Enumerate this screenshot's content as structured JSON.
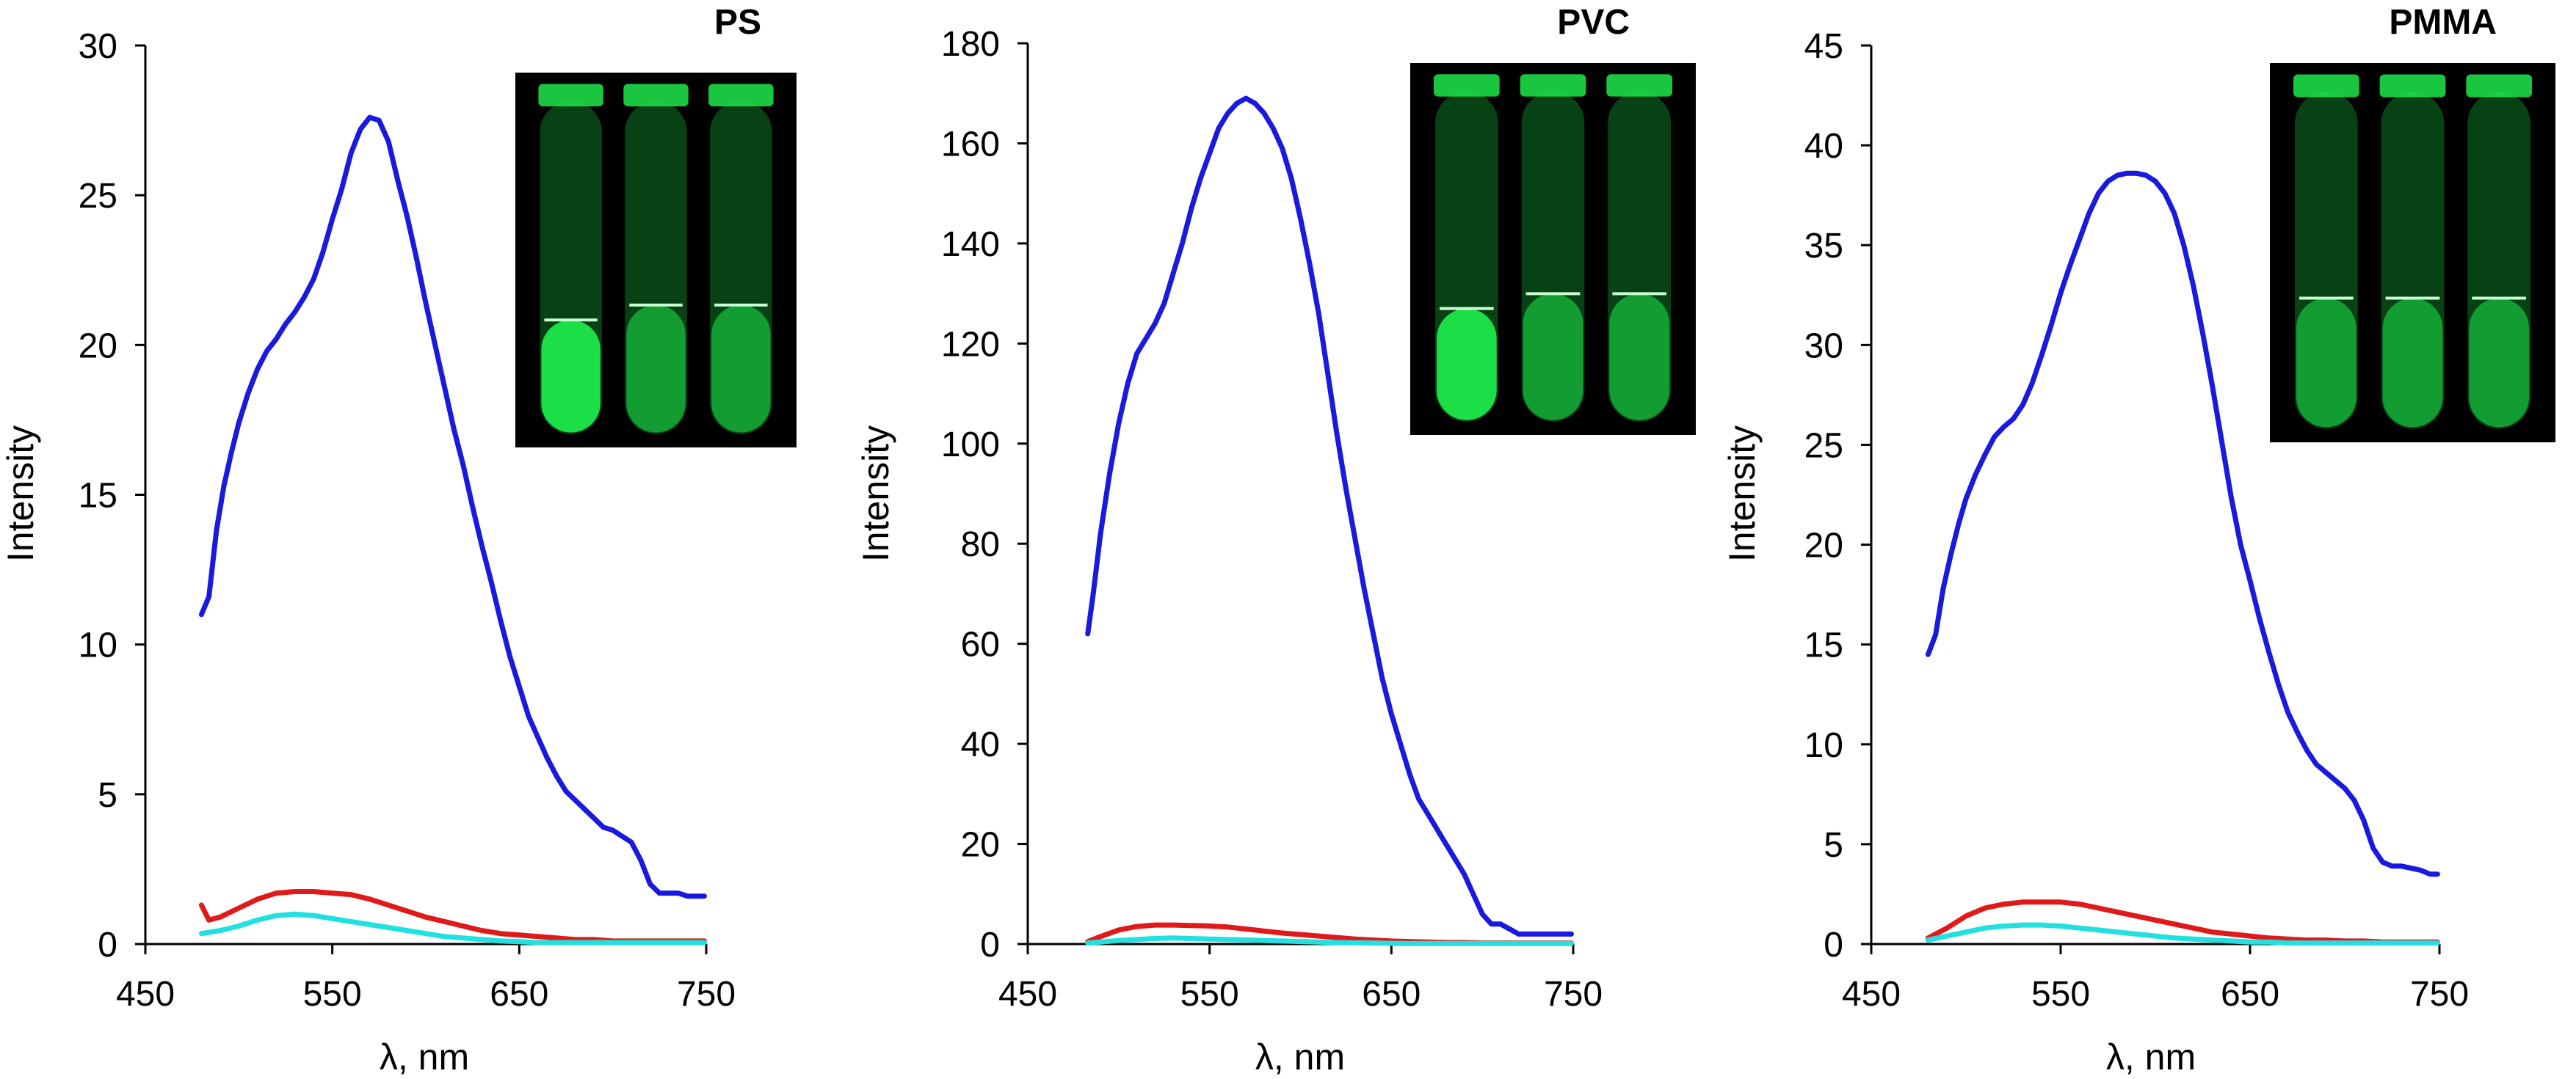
{
  "colors": {
    "series_blue": "#1a1adf",
    "series_red": "#e01a1a",
    "series_cyan": "#22e0e0",
    "axis": "#000000",
    "inset_background": "#000000",
    "inset_fluorescence": "#1ee84a"
  },
  "chart_data": [
    {
      "type": "line",
      "title": "PS",
      "xlabel": "λ, nm",
      "ylabel": "Intensity",
      "xlim": [
        450,
        750
      ],
      "ylim": [
        0,
        30
      ],
      "x_ticks": [
        "450",
        "550",
        "650",
        "750"
      ],
      "y_ticks": [
        "0",
        "5",
        "10",
        "15",
        "20",
        "25",
        "30"
      ],
      "grid": false,
      "legend": "none",
      "inset_image": "photo of three fluorescent vials",
      "series": [
        {
          "color": "#1a1adf",
          "x": [
            480,
            484,
            488,
            492,
            496,
            500,
            505,
            510,
            515,
            520,
            525,
            530,
            535,
            540,
            545,
            550,
            555,
            560,
            565,
            570,
            575,
            580,
            585,
            590,
            595,
            600,
            605,
            610,
            615,
            620,
            625,
            630,
            635,
            640,
            645,
            650,
            655,
            660,
            665,
            670,
            675,
            680,
            685,
            690,
            695,
            700,
            705,
            710,
            715,
            720,
            725,
            730,
            735,
            740,
            745,
            749
          ],
          "y": [
            11.0,
            11.6,
            13.8,
            15.3,
            16.4,
            17.4,
            18.4,
            19.2,
            19.8,
            20.2,
            20.7,
            21.1,
            21.6,
            22.2,
            23.1,
            24.2,
            25.2,
            26.4,
            27.2,
            27.6,
            27.5,
            26.8,
            25.5,
            24.3,
            22.9,
            21.4,
            20.0,
            18.6,
            17.2,
            16.0,
            14.6,
            13.3,
            12.1,
            10.8,
            9.6,
            8.6,
            7.6,
            6.9,
            6.2,
            5.6,
            5.1,
            4.8,
            4.5,
            4.2,
            3.9,
            3.8,
            3.6,
            3.4,
            2.8,
            2.0,
            1.7,
            1.7,
            1.7,
            1.6,
            1.6,
            1.6
          ]
        },
        {
          "color": "#e01a1a",
          "x": [
            480,
            484,
            490,
            500,
            510,
            520,
            530,
            540,
            550,
            560,
            570,
            580,
            590,
            600,
            610,
            620,
            630,
            640,
            650,
            660,
            670,
            680,
            690,
            700,
            710,
            720,
            730,
            740,
            749
          ],
          "y": [
            1.3,
            0.8,
            0.9,
            1.2,
            1.5,
            1.7,
            1.75,
            1.75,
            1.7,
            1.65,
            1.5,
            1.3,
            1.1,
            0.9,
            0.75,
            0.6,
            0.45,
            0.35,
            0.3,
            0.25,
            0.2,
            0.15,
            0.15,
            0.1,
            0.1,
            0.1,
            0.1,
            0.1,
            0.1
          ]
        },
        {
          "color": "#22e0e0",
          "x": [
            480,
            490,
            500,
            510,
            520,
            530,
            540,
            550,
            560,
            570,
            580,
            590,
            600,
            610,
            620,
            630,
            640,
            650,
            660,
            670,
            680,
            690,
            700,
            710,
            720,
            730,
            740,
            749
          ],
          "y": [
            0.35,
            0.45,
            0.6,
            0.8,
            0.95,
            1.0,
            0.95,
            0.85,
            0.75,
            0.65,
            0.55,
            0.45,
            0.35,
            0.25,
            0.2,
            0.15,
            0.1,
            0.08,
            0.05,
            0.05,
            0.05,
            0.05,
            0.05,
            0.05,
            0.05,
            0.05,
            0.05,
            0.05
          ]
        }
      ]
    },
    {
      "type": "line",
      "title": "PVC",
      "xlabel": "λ, nm",
      "ylabel": "Intensity",
      "xlim": [
        450,
        750
      ],
      "ylim": [
        0,
        180
      ],
      "x_ticks": [
        "450",
        "550",
        "650",
        "750"
      ],
      "y_ticks": [
        "0",
        "20",
        "40",
        "60",
        "80",
        "100",
        "120",
        "140",
        "160",
        "180"
      ],
      "grid": false,
      "legend": "none",
      "inset_image": "photo of three fluorescent vials",
      "series": [
        {
          "color": "#1a1adf",
          "x": [
            483,
            486,
            490,
            495,
            500,
            505,
            510,
            515,
            520,
            525,
            530,
            535,
            540,
            545,
            550,
            555,
            560,
            565,
            570,
            575,
            580,
            585,
            590,
            595,
            600,
            605,
            610,
            615,
            620,
            625,
            630,
            635,
            640,
            645,
            650,
            655,
            660,
            665,
            670,
            675,
            680,
            685,
            690,
            695,
            700,
            705,
            710,
            715,
            720,
            725,
            730,
            735,
            740,
            745,
            749
          ],
          "y": [
            62,
            70,
            82,
            94,
            104,
            112,
            118,
            121,
            124,
            128,
            134,
            140,
            147,
            153,
            158,
            163,
            166,
            168,
            169,
            168,
            166,
            163,
            159,
            153,
            145,
            136,
            126,
            114,
            102,
            91,
            81,
            71,
            62,
            53,
            46,
            40,
            34,
            29,
            26,
            23,
            20,
            17,
            14,
            10,
            6,
            4,
            4,
            3,
            2,
            2,
            2,
            2,
            2,
            2,
            2
          ]
        },
        {
          "color": "#e01a1a",
          "x": [
            483,
            490,
            500,
            510,
            520,
            530,
            540,
            550,
            560,
            570,
            580,
            590,
            600,
            610,
            620,
            630,
            640,
            650,
            660,
            670,
            680,
            690,
            700,
            710,
            720,
            730,
            740,
            749
          ],
          "y": [
            0.5,
            1.5,
            2.8,
            3.5,
            3.8,
            3.8,
            3.7,
            3.6,
            3.4,
            3.0,
            2.6,
            2.2,
            1.9,
            1.6,
            1.3,
            1.0,
            0.8,
            0.6,
            0.5,
            0.4,
            0.3,
            0.3,
            0.2,
            0.2,
            0.2,
            0.2,
            0.2,
            0.2
          ]
        },
        {
          "color": "#22e0e0",
          "x": [
            483,
            490,
            500,
            510,
            520,
            530,
            540,
            550,
            560,
            570,
            580,
            590,
            600,
            610,
            620,
            630,
            640,
            650,
            660,
            670,
            680,
            690,
            700,
            710,
            720,
            730,
            740,
            749
          ],
          "y": [
            0.2,
            0.4,
            0.7,
            0.9,
            1.1,
            1.2,
            1.1,
            1.0,
            0.9,
            0.8,
            0.7,
            0.6,
            0.5,
            0.4,
            0.3,
            0.25,
            0.2,
            0.15,
            0.1,
            0.1,
            0.1,
            0.1,
            0.1,
            0.1,
            0.1,
            0.1,
            0.1,
            0.1
          ]
        }
      ]
    },
    {
      "type": "line",
      "title": "PMMA",
      "xlabel": "λ, nm",
      "ylabel": "Intensity",
      "xlim": [
        450,
        750
      ],
      "ylim": [
        0,
        45
      ],
      "x_ticks": [
        "450",
        "550",
        "650",
        "750"
      ],
      "y_ticks": [
        "0",
        "5",
        "10",
        "15",
        "20",
        "25",
        "30",
        "35",
        "40",
        "45"
      ],
      "grid": false,
      "legend": "none",
      "inset_image": "photo of three fluorescent vials",
      "series": [
        {
          "color": "#1a1adf",
          "x": [
            480,
            484,
            488,
            492,
            496,
            500,
            505,
            510,
            515,
            520,
            525,
            530,
            535,
            540,
            545,
            550,
            555,
            560,
            565,
            570,
            575,
            580,
            585,
            590,
            595,
            600,
            605,
            610,
            615,
            620,
            625,
            630,
            635,
            640,
            645,
            650,
            655,
            660,
            665,
            670,
            675,
            680,
            685,
            690,
            695,
            700,
            705,
            710,
            715,
            720,
            725,
            730,
            735,
            740,
            745,
            749
          ],
          "y": [
            14.5,
            15.5,
            17.8,
            19.5,
            21.0,
            22.3,
            23.5,
            24.5,
            25.4,
            25.9,
            26.3,
            27.0,
            28.1,
            29.5,
            31.0,
            32.6,
            34.0,
            35.3,
            36.6,
            37.6,
            38.2,
            38.5,
            38.6,
            38.6,
            38.5,
            38.2,
            37.6,
            36.6,
            35.0,
            33.0,
            30.6,
            28.0,
            25.2,
            22.4,
            20.0,
            18.2,
            16.3,
            14.6,
            13.0,
            11.6,
            10.6,
            9.7,
            9.0,
            8.6,
            8.2,
            7.8,
            7.2,
            6.2,
            4.8,
            4.1,
            3.9,
            3.9,
            3.8,
            3.7,
            3.5,
            3.5
          ]
        },
        {
          "color": "#e01a1a",
          "x": [
            480,
            490,
            500,
            510,
            520,
            530,
            540,
            550,
            560,
            570,
            580,
            590,
            600,
            610,
            620,
            630,
            640,
            650,
            660,
            670,
            680,
            690,
            700,
            710,
            720,
            730,
            740,
            749
          ],
          "y": [
            0.3,
            0.8,
            1.4,
            1.8,
            2.0,
            2.1,
            2.1,
            2.1,
            2.0,
            1.8,
            1.6,
            1.4,
            1.2,
            1.0,
            0.8,
            0.6,
            0.5,
            0.4,
            0.3,
            0.25,
            0.2,
            0.2,
            0.15,
            0.15,
            0.1,
            0.1,
            0.1,
            0.1
          ]
        },
        {
          "color": "#22e0e0",
          "x": [
            480,
            490,
            500,
            510,
            520,
            530,
            540,
            550,
            560,
            570,
            580,
            590,
            600,
            610,
            620,
            630,
            640,
            650,
            660,
            670,
            680,
            690,
            700,
            710,
            720,
            730,
            740,
            749
          ],
          "y": [
            0.2,
            0.4,
            0.6,
            0.8,
            0.9,
            0.95,
            0.95,
            0.9,
            0.8,
            0.7,
            0.6,
            0.5,
            0.4,
            0.3,
            0.25,
            0.2,
            0.15,
            0.1,
            0.1,
            0.05,
            0.05,
            0.05,
            0.05,
            0.05,
            0.05,
            0.05,
            0.05,
            0.05
          ]
        }
      ]
    }
  ]
}
